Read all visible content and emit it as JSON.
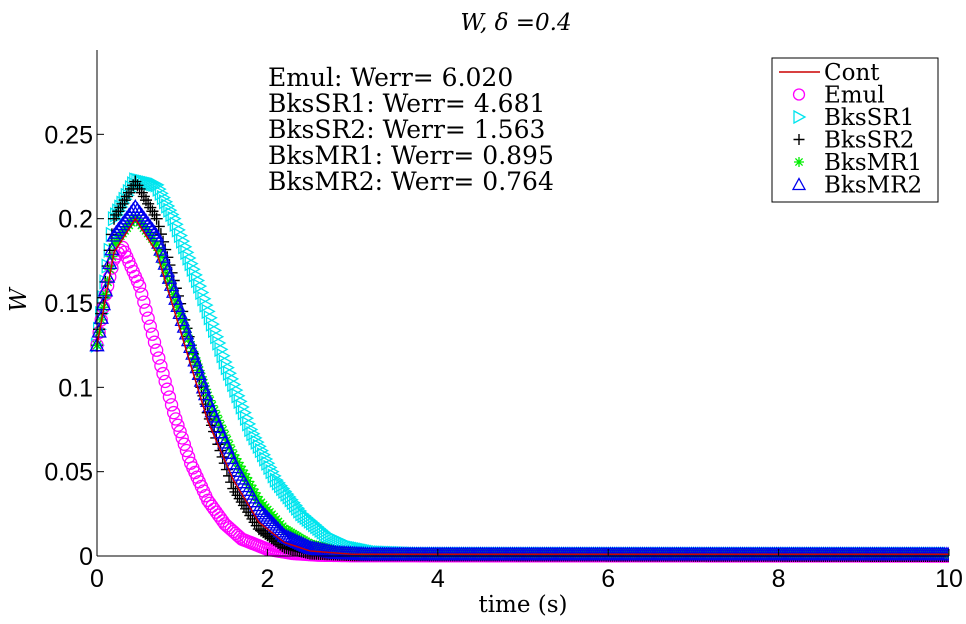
{
  "chart_data": {
    "type": "line",
    "title": "W, δ =0.4",
    "xlabel": "time (s)",
    "ylabel": "W",
    "xlim": [
      0,
      10
    ],
    "ylim": [
      0,
      0.3
    ],
    "xticks": [
      0,
      2,
      4,
      6,
      8,
      10
    ],
    "xtick_labels": [
      "0",
      "2",
      "4",
      "6",
      "8",
      "10"
    ],
    "yticks": [
      0,
      0.05,
      0.1,
      0.15,
      0.2,
      0.25
    ],
    "ytick_labels": [
      "0",
      "0.05",
      "0.1",
      "0.15",
      "0.2",
      "0.25"
    ],
    "grid": false,
    "legend_position": "top-right",
    "annotations": [
      "Emul: Werr= 6.020",
      "BksSR1: Werr= 4.681",
      "BksSR2: Werr= 1.563",
      "BksMR1: Werr= 0.895",
      "BksMR2: Werr= 0.764"
    ],
    "series": [
      {
        "name": "Cont",
        "marker": "line",
        "color": "#cc0000",
        "x": [
          0,
          0.2,
          0.45,
          0.7,
          1.0,
          1.3,
          1.6,
          1.9,
          2.2,
          2.5,
          3.0,
          3.5,
          4.0,
          10
        ],
        "y": [
          0.125,
          0.18,
          0.2,
          0.18,
          0.13,
          0.08,
          0.045,
          0.02,
          0.008,
          0.003,
          0.001,
          0.001,
          0.001,
          0.001
        ]
      },
      {
        "name": "Emul",
        "marker": "circle",
        "color": "#ff00ff",
        "x": [
          0,
          0.1,
          0.2,
          0.3,
          0.5,
          0.7,
          0.9,
          1.1,
          1.3,
          1.5,
          1.7,
          2.0,
          2.3,
          2.6,
          3.0,
          10
        ],
        "y": [
          0.125,
          0.155,
          0.176,
          0.183,
          0.16,
          0.122,
          0.085,
          0.055,
          0.033,
          0.019,
          0.01,
          0.004,
          0.0015,
          0.0005,
          0.0002,
          0.0
        ]
      },
      {
        "name": "BksSR1",
        "marker": "triangle-right",
        "color": "#00e5ee",
        "x": [
          0,
          0.2,
          0.45,
          0.7,
          0.9,
          1.2,
          1.5,
          1.8,
          2.1,
          2.4,
          2.7,
          3.0,
          3.3,
          3.8,
          10
        ],
        "y": [
          0.125,
          0.2,
          0.223,
          0.22,
          0.2,
          0.16,
          0.115,
          0.075,
          0.045,
          0.025,
          0.012,
          0.005,
          0.002,
          0.001,
          0.001
        ]
      },
      {
        "name": "BksSR2",
        "marker": "plus",
        "color": "#000000",
        "x": [
          0,
          0.2,
          0.45,
          0.7,
          1.0,
          1.3,
          1.6,
          1.9,
          2.2,
          2.5,
          3.0,
          10
        ],
        "y": [
          0.125,
          0.2,
          0.222,
          0.2,
          0.145,
          0.085,
          0.04,
          0.016,
          0.005,
          0.0015,
          0.0005,
          0.0
        ]
      },
      {
        "name": "BksMR1",
        "marker": "asterisk",
        "color": "#00ee00",
        "x": [
          0,
          0.2,
          0.45,
          0.7,
          1.0,
          1.3,
          1.6,
          1.9,
          2.2,
          2.5,
          2.8,
          3.2,
          3.6,
          10
        ],
        "y": [
          0.125,
          0.185,
          0.201,
          0.185,
          0.14,
          0.095,
          0.06,
          0.033,
          0.016,
          0.007,
          0.003,
          0.001,
          0.001,
          0.001
        ]
      },
      {
        "name": "BksMR2",
        "marker": "triangle-up",
        "color": "#0000ee",
        "x": [
          0,
          0.2,
          0.45,
          0.7,
          1.0,
          1.3,
          1.6,
          1.9,
          2.2,
          2.5,
          2.8,
          3.2,
          3.6,
          10
        ],
        "y": [
          0.125,
          0.19,
          0.207,
          0.19,
          0.14,
          0.092,
          0.055,
          0.028,
          0.012,
          0.005,
          0.002,
          0.001,
          0.001,
          0.001
        ]
      }
    ]
  }
}
